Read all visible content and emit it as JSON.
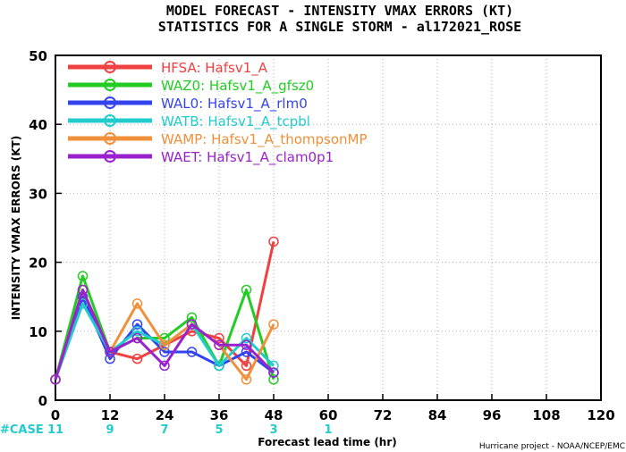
{
  "chart_data": {
    "type": "line",
    "title": "MODEL FORECAST - INTENSITY VMAX ERRORS (KT)",
    "subtitle": "STATISTICS FOR A SINGLE STORM - al172021_ROSE",
    "xlabel": "Forecast lead time (hr)",
    "ylabel": "INTENSITY VMAX ERRORS (KT)",
    "xlim": [
      0,
      120
    ],
    "ylim": [
      0,
      50
    ],
    "xticks": [
      "0",
      "12",
      "24",
      "36",
      "48",
      "60",
      "72",
      "84",
      "96",
      "108",
      "120"
    ],
    "yticks": [
      "0",
      "10",
      "20",
      "30",
      "40",
      "50"
    ],
    "grid": true,
    "legend_position": "top-left",
    "x": [
      0,
      6,
      12,
      18,
      24,
      30,
      36,
      42,
      48
    ],
    "series": [
      {
        "name": "HFSA: Hafsv1_A",
        "color": "#f04040",
        "values": [
          3,
          15,
          7,
          6,
          8,
          10,
          9,
          5,
          23
        ]
      },
      {
        "name": "WAZ0: Hafsv1_A_gfsz0",
        "color": "#22cc22",
        "values": [
          3,
          18,
          7,
          9,
          9,
          12,
          5,
          16,
          3
        ]
      },
      {
        "name": "WAL0: Hafsv1_A_rlm0",
        "color": "#3344ee",
        "values": [
          3,
          15,
          6,
          11,
          7,
          7,
          5,
          7,
          4
        ]
      },
      {
        "name": "WATB: Hafsv1_A_tcpbl",
        "color": "#22cccc",
        "values": [
          3,
          14,
          7,
          10,
          8,
          11,
          5,
          9,
          5
        ]
      },
      {
        "name": "WAMP: Hafsv1_A_thompsonMP",
        "color": "#f0903a",
        "values": [
          3,
          16,
          7,
          14,
          8,
          11,
          8,
          3,
          11
        ]
      },
      {
        "name": "WAET: Hafsv1_A_clam0p1",
        "color": "#9922cc",
        "values": [
          3,
          16,
          7,
          9,
          5,
          11,
          8,
          8,
          4
        ]
      }
    ],
    "case_label": "#CASE",
    "case_color": "#22cccc",
    "case_counts": [
      {
        "x": 0,
        "label": "11"
      },
      {
        "x": 12,
        "label": "9"
      },
      {
        "x": 24,
        "label": "7"
      },
      {
        "x": 36,
        "label": "5"
      },
      {
        "x": 48,
        "label": "3"
      },
      {
        "x": 60,
        "label": "1"
      }
    ],
    "credit": "Hurricane project - NOAA/NCEP/EMC"
  }
}
